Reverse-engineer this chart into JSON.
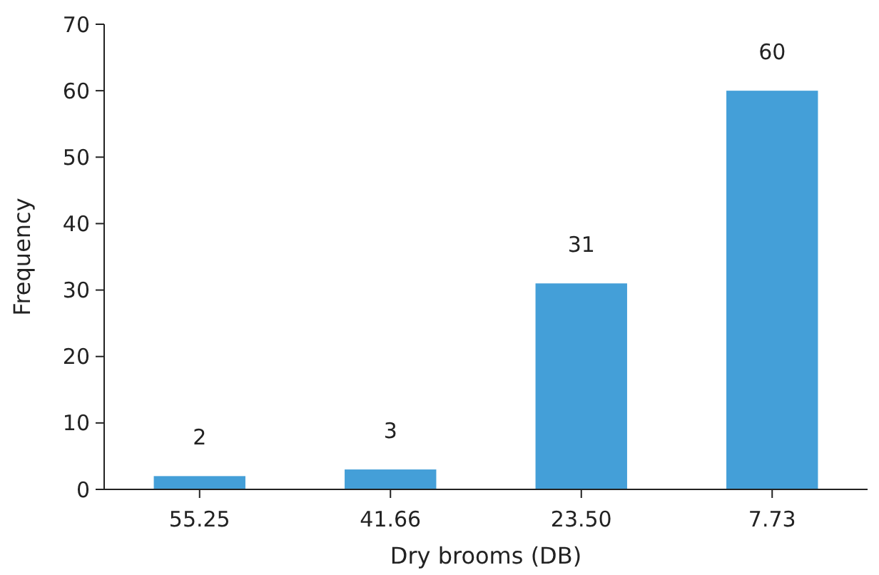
{
  "chart_data": {
    "type": "bar",
    "xlabel": "Dry brooms (DB)",
    "ylabel": "Frequency",
    "categories": [
      "55.25",
      "41.66",
      "23.50",
      "7.73"
    ],
    "values": [
      2,
      3,
      31,
      60
    ],
    "color": "#449fd8",
    "ylim": [
      0,
      70
    ],
    "yticks": [
      0,
      10,
      20,
      30,
      40,
      50,
      60,
      70
    ],
    "data_labels": true,
    "grid": false
  }
}
